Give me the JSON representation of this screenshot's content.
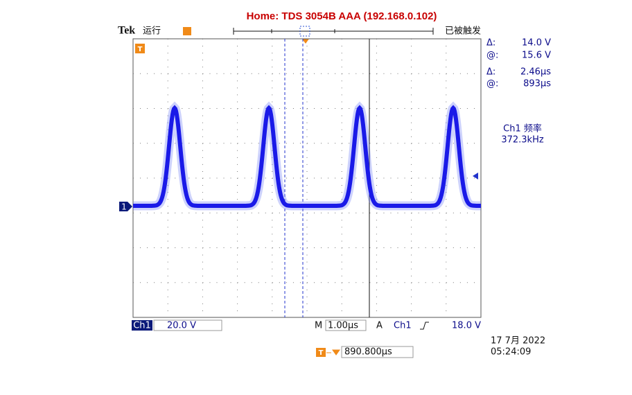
{
  "header": {
    "title": "Home:  TDS 3054B  AAA  (192.168.0.102)"
  },
  "status": {
    "brand": "Tek",
    "run_state": "运行",
    "trigger_state": "已被触发"
  },
  "cursor_readouts": [
    {
      "label": "Δ:",
      "value": "14.0 V"
    },
    {
      "label": "@:",
      "value": "15.6 V"
    },
    {
      "label": "Δ:",
      "value": "2.46µs"
    },
    {
      "label": "@:",
      "value": "893µs"
    }
  ],
  "measurement": {
    "label": "Ch1 频率",
    "value": "372.3kHz"
  },
  "settings": {
    "channel": "Ch1",
    "volts_per_div": "20.0 V",
    "time_label": "M",
    "time_per_div": "1.00µs",
    "trigger_label": "A",
    "trigger_source": "Ch1",
    "trigger_level": "18.0 V"
  },
  "horizontal_position": "890.800µs",
  "timestamp": {
    "date": "17 7月  2022",
    "time": "05:24:09"
  },
  "markers": {
    "channel": "1",
    "trigger": "T"
  }
}
